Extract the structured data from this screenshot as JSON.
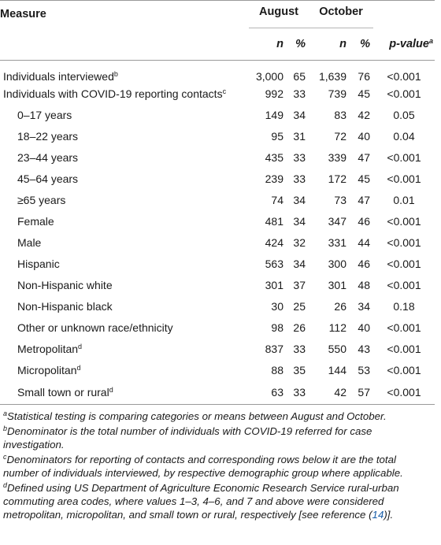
{
  "header": {
    "measure": "Measure",
    "august": "August",
    "october": "October",
    "n": "n",
    "pct": "%",
    "pvalue": "p-value",
    "pvalue_sup": "a"
  },
  "rows": [
    {
      "label": "Individuals interviewed",
      "sup": "b",
      "indent": false,
      "aug_n": "3,000",
      "aug_pct": "65",
      "oct_n": "1,639",
      "oct_pct": "76",
      "p": "<0.001"
    },
    {
      "label": "Individuals with COVID-19 reporting contacts",
      "sup": "c",
      "indent": false,
      "aug_n": "992",
      "aug_pct": "33",
      "oct_n": "739",
      "oct_pct": "45",
      "p": "<0.001"
    },
    {
      "label": "0–17 years",
      "sup": "",
      "indent": true,
      "aug_n": "149",
      "aug_pct": "34",
      "oct_n": "83",
      "oct_pct": "42",
      "p": "0.05"
    },
    {
      "label": "18–22 years",
      "sup": "",
      "indent": true,
      "aug_n": "95",
      "aug_pct": "31",
      "oct_n": "72",
      "oct_pct": "40",
      "p": "0.04"
    },
    {
      "label": "23–44 years",
      "sup": "",
      "indent": true,
      "aug_n": "435",
      "aug_pct": "33",
      "oct_n": "339",
      "oct_pct": "47",
      "p": "<0.001"
    },
    {
      "label": "45–64 years",
      "sup": "",
      "indent": true,
      "aug_n": "239",
      "aug_pct": "33",
      "oct_n": "172",
      "oct_pct": "45",
      "p": "<0.001"
    },
    {
      "label": "≥65 years",
      "sup": "",
      "indent": true,
      "aug_n": "74",
      "aug_pct": "34",
      "oct_n": "73",
      "oct_pct": "47",
      "p": "0.01"
    },
    {
      "label": "Female",
      "sup": "",
      "indent": true,
      "aug_n": "481",
      "aug_pct": "34",
      "oct_n": "347",
      "oct_pct": "46",
      "p": "<0.001"
    },
    {
      "label": "Male",
      "sup": "",
      "indent": true,
      "aug_n": "424",
      "aug_pct": "32",
      "oct_n": "331",
      "oct_pct": "44",
      "p": "<0.001"
    },
    {
      "label": "Hispanic",
      "sup": "",
      "indent": true,
      "aug_n": "563",
      "aug_pct": "34",
      "oct_n": "300",
      "oct_pct": "46",
      "p": "<0.001"
    },
    {
      "label": "Non-Hispanic white",
      "sup": "",
      "indent": true,
      "aug_n": "301",
      "aug_pct": "37",
      "oct_n": "301",
      "oct_pct": "48",
      "p": "<0.001"
    },
    {
      "label": "Non-Hispanic black",
      "sup": "",
      "indent": true,
      "aug_n": "30",
      "aug_pct": "25",
      "oct_n": "26",
      "oct_pct": "34",
      "p": "0.18"
    },
    {
      "label": "Other or unknown race/ethnicity",
      "sup": "",
      "indent": true,
      "aug_n": "98",
      "aug_pct": "26",
      "oct_n": "112",
      "oct_pct": "40",
      "p": "<0.001"
    },
    {
      "label": "Metropolitan",
      "sup": "d",
      "indent": true,
      "aug_n": "837",
      "aug_pct": "33",
      "oct_n": "550",
      "oct_pct": "43",
      "p": "<0.001"
    },
    {
      "label": "Micropolitan",
      "sup": "d",
      "indent": true,
      "aug_n": "88",
      "aug_pct": "35",
      "oct_n": "144",
      "oct_pct": "53",
      "p": "<0.001"
    },
    {
      "label": "Small town or rural",
      "sup": "d",
      "indent": true,
      "aug_n": "63",
      "aug_pct": "33",
      "oct_n": "42",
      "oct_pct": "57",
      "p": "<0.001"
    }
  ],
  "footnotes": [
    {
      "mark": "a",
      "text": "Statistical testing is comparing categories or means between August and October."
    },
    {
      "mark": "b",
      "text": "Denominator is the total number of individuals with COVID-19 referred for case investigation."
    },
    {
      "mark": "c",
      "text": "Denominators for reporting of contacts and corresponding rows below it are the total number of individuals interviewed, by respective demographic group where applicable."
    },
    {
      "mark": "d",
      "text": "Defined using US Department of Agriculture Economic Research Service rural-urban commuting area codes, where values 1–3, 4–6, and 7 and above were considered metropolitan, micropolitan, and small town or rural, respectively [see reference (",
      "ref": "14",
      "tail": ")]."
    }
  ]
}
